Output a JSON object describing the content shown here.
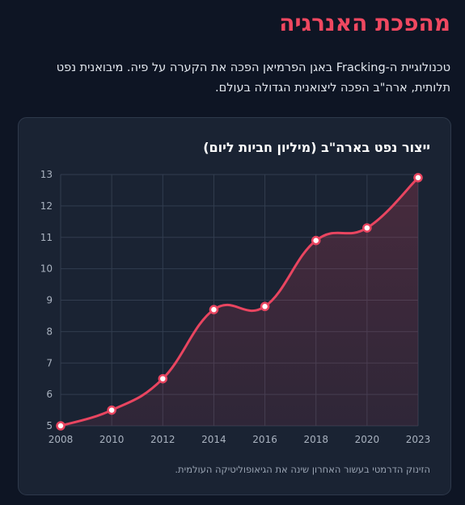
{
  "header": {
    "title": "מהפכת האנרגיה",
    "intro": "טכנולוגיית ה-Fracking באגן הפרמיאן הפכה את הקערה על פיה. מיבואנית נפט תלותית, ארה\"ב הפכה ליצואנית הגדולה בעולם."
  },
  "card": {
    "caption": "הזינוק הדרמטי בעשור האחרון שינה את הגיאופוליטיקה העולמית."
  },
  "chart_data": {
    "type": "line",
    "title": "ייצור נפט בארה\"ב (מיליון חביות ליום)",
    "xlabel": "",
    "ylabel": "",
    "x": [
      2008,
      2010,
      2012,
      2014,
      2016,
      2018,
      2020,
      2023
    ],
    "series": [
      {
        "values": [
          5.0,
          5.5,
          6.5,
          8.7,
          8.8,
          10.9,
          11.3,
          12.9
        ]
      }
    ],
    "ylim": [
      5,
      13
    ],
    "yticks": [
      5,
      6,
      7,
      8,
      9,
      10,
      11,
      12,
      13
    ],
    "grid": true,
    "legend": "none",
    "line_color": "#e94560",
    "fill_color": "#e94560",
    "point_fill": "#ffffff"
  }
}
